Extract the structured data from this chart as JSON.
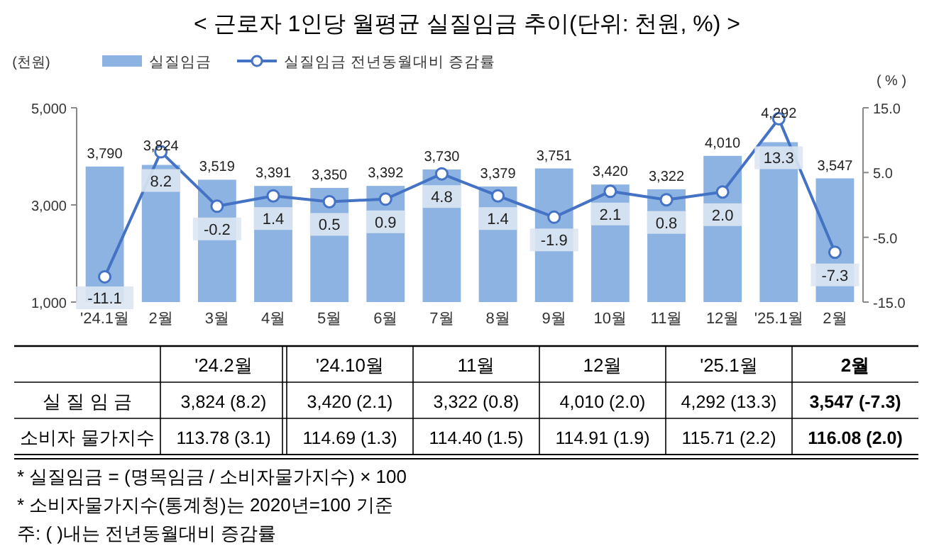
{
  "chart_data": [
    {
      "type": "bar",
      "title": "< 근로자 1인당 월평균 실질임금 추이(단위: 천원, %) >",
      "ylabel": "(천원)",
      "y2label": "( % )",
      "categories": [
        "'24.1월",
        "2월",
        "3월",
        "4월",
        "5월",
        "6월",
        "7월",
        "8월",
        "9월",
        "10월",
        "11월",
        "12월",
        "'25.1월",
        "2월"
      ],
      "series": [
        {
          "name": "실질임금",
          "type": "bar",
          "color": "#8db3e2",
          "values": [
            3790,
            3824,
            3519,
            3391,
            3350,
            3392,
            3730,
            3379,
            3751,
            3420,
            3322,
            4010,
            4292,
            3547
          ],
          "value_labels": [
            "3,790",
            "3,824",
            "3,519",
            "3,391",
            "3,350",
            "3,392",
            "3,730",
            "3,379",
            "3,751",
            "3,420",
            "3,322",
            "4,010",
            "4,292",
            "3,547"
          ]
        },
        {
          "name": "실질임금 전년동월대비 증감률",
          "type": "line",
          "axis": "y2",
          "color": "#4472c4",
          "values": [
            -11.1,
            8.2,
            -0.2,
            1.4,
            0.5,
            0.9,
            4.8,
            1.4,
            -1.9,
            2.1,
            0.8,
            2.0,
            13.3,
            -7.3
          ],
          "value_labels": [
            "-11.1",
            "8.2",
            "-0.2",
            "1.4",
            "0.5",
            "0.9",
            "4.8",
            "1.4",
            "-1.9",
            "2.1",
            "0.8",
            "2.0",
            "13.3",
            "-7.3"
          ]
        }
      ],
      "ylim": [
        1000,
        5000
      ],
      "yticks": [
        {
          "value": 1000,
          "label": "1,000"
        },
        {
          "value": 3000,
          "label": "3,000"
        },
        {
          "value": 5000,
          "label": "5,000"
        }
      ],
      "y2lim": [
        -15,
        15
      ],
      "y2ticks": [
        {
          "value": -15,
          "label": "-15.0"
        },
        {
          "value": -5,
          "label": "-5.0"
        },
        {
          "value": 5,
          "label": "5.0"
        },
        {
          "value": 15,
          "label": "15.0"
        }
      ],
      "marker": "circle",
      "legend": "top"
    },
    {
      "type": "other",
      "categories": [
        "'24.2월",
        "'24.10월",
        "11월",
        "12월",
        "'25.1월",
        "2월"
      ],
      "y_categories": [
        "실 질 임 금",
        "소비자 물가지수"
      ],
      "cell_labels": [
        [
          "3,824  (8.2)",
          "3,420  (2.1)",
          "3,322  (0.8)",
          "4,010  (2.0)",
          "4,292  (13.3)",
          "3,547  (-7.3)"
        ],
        [
          "113.78  (3.1)",
          "114.69  (1.3)",
          "114.40  (1.5)",
          "114.91  (1.9)",
          "115.71  (2.2)",
          "116.08  (2.0)"
        ]
      ],
      "annotations": [
        "* 실질임금 = (명목임금 / 소비자물가지수) × 100",
        "* 소비자물가지수(통계청)는 2020년=100 기준",
        "주: (   )내는 전년동월대비 증감률"
      ]
    }
  ]
}
